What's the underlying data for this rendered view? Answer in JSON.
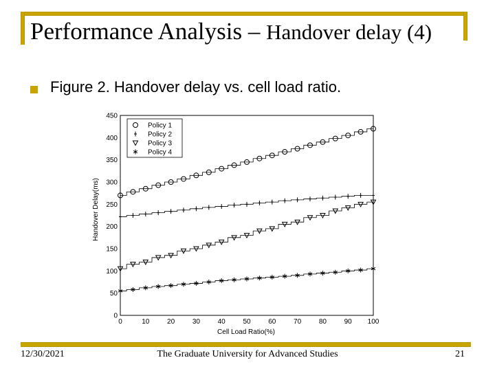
{
  "slide": {
    "title_main": "Performance Analysis – ",
    "title_sub": "Handover delay (4)",
    "bullet_text": "Figure 2. Handover delay vs. cell load ratio.",
    "footer": {
      "date": "12/30/2021",
      "org": "The Graduate University for Advanced Studies",
      "page": "21"
    },
    "colors": {
      "accent": "#c8a500",
      "text": "#000000",
      "grid": "#999999"
    }
  },
  "chart_data": {
    "type": "scatter",
    "title": "",
    "xlabel": "Cell Load Ratio(%)",
    "ylabel": "Handover Delay(ms)",
    "xlim": [
      0,
      100
    ],
    "ylim": [
      0,
      450
    ],
    "xticks": [
      0,
      10,
      20,
      30,
      40,
      50,
      60,
      70,
      80,
      90,
      100
    ],
    "yticks": [
      0,
      50,
      100,
      150,
      200,
      250,
      300,
      350,
      400,
      450
    ],
    "grid": true,
    "legend_position": "top-left",
    "series": [
      {
        "name": "Policy 1",
        "marker": "circle",
        "x": [
          0,
          5,
          10,
          15,
          20,
          25,
          30,
          35,
          40,
          45,
          50,
          55,
          60,
          65,
          70,
          75,
          80,
          85,
          90,
          95,
          100
        ],
        "y": [
          270,
          278,
          285,
          293,
          300,
          307,
          315,
          322,
          330,
          338,
          345,
          353,
          360,
          368,
          375,
          383,
          390,
          398,
          405,
          413,
          420
        ]
      },
      {
        "name": "Policy 2",
        "marker": "plus",
        "x": [
          0,
          5,
          10,
          15,
          20,
          25,
          30,
          35,
          40,
          45,
          50,
          55,
          60,
          65,
          70,
          75,
          80,
          85,
          90,
          95,
          100
        ],
        "y": [
          222,
          225,
          228,
          231,
          234,
          237,
          240,
          243,
          245,
          248,
          250,
          253,
          255,
          258,
          260,
          262,
          264,
          266,
          268,
          270,
          270
        ]
      },
      {
        "name": "Policy 3",
        "marker": "triangle-down",
        "x": [
          0,
          5,
          10,
          15,
          20,
          25,
          30,
          35,
          40,
          45,
          50,
          55,
          60,
          65,
          70,
          75,
          80,
          85,
          90,
          95,
          100
        ],
        "y": [
          105,
          115,
          120,
          130,
          135,
          145,
          150,
          158,
          165,
          175,
          180,
          190,
          195,
          205,
          210,
          220,
          225,
          235,
          242,
          250,
          255
        ]
      },
      {
        "name": "Policy 4",
        "marker": "star",
        "x": [
          0,
          5,
          10,
          15,
          20,
          25,
          30,
          35,
          40,
          45,
          50,
          55,
          60,
          65,
          70,
          75,
          80,
          85,
          90,
          95,
          100
        ],
        "y": [
          55,
          58,
          62,
          65,
          67,
          70,
          72,
          75,
          78,
          80,
          82,
          84,
          86,
          88,
          90,
          93,
          95,
          97,
          100,
          102,
          105
        ]
      }
    ]
  }
}
